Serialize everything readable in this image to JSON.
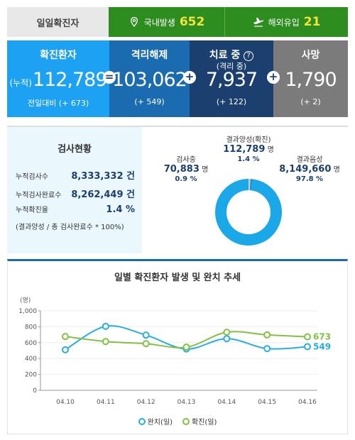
{
  "topbar": {
    "title": "일일확진자",
    "domestic_label": "국내발생",
    "domestic_value": "652",
    "import_label": "해외유입",
    "import_value": "21"
  },
  "status": {
    "confirmed": {
      "label": "확진환자",
      "prefix": "(누적)",
      "value": "112,789",
      "diff": "전일대비 (+ 673)"
    },
    "released": {
      "label": "격리해제",
      "value": "103,062",
      "diff": "(+ 549)"
    },
    "treating": {
      "label": "치료 중",
      "sub": "(격리 중)",
      "value": "7,937",
      "diff": "(+ 122)"
    },
    "deaths": {
      "label": "사망",
      "value": "1,790",
      "diff": "(+ 2)"
    },
    "op_equals": "=",
    "op_plus": "+"
  },
  "tests": {
    "title": "검사현황",
    "rows": [
      {
        "label": "누적검사수",
        "value": "8,333,332 건"
      },
      {
        "label": "누적검사완료수",
        "value": "8,262,449 건"
      },
      {
        "label": "누적확진율",
        "value": "1.4 %"
      }
    ],
    "note": "(결과양성 / 총 검사완료수 * 100%)",
    "donut": {
      "positive": {
        "label": "결과양성(확진)",
        "value": "112,789",
        "unit": "명",
        "pct": "1.4 %",
        "share": 1.4,
        "color": "#2196d3"
      },
      "testing": {
        "label": "검사중",
        "value": "70,883",
        "unit": "명",
        "pct": "0.9 %",
        "share": 0.9,
        "color": "#c8cfd6"
      },
      "negative": {
        "label": "결과음성",
        "value": "8,149,660",
        "unit": "명",
        "pct": "97.8 %",
        "share": 97.8,
        "color": "#1ba8e8"
      }
    }
  },
  "chart": {
    "title": "일별 확진환자 발생 및 완치 추세"
  },
  "chart_data": {
    "type": "line",
    "title": "일별 확진환자 발생 및 완치 추세",
    "ylabel": "(명)",
    "xlabel": "",
    "ylim": [
      0,
      1000
    ],
    "yticks": [
      "0",
      "200",
      "400",
      "600",
      "800",
      "1,000"
    ],
    "ytick_values": [
      0,
      200,
      400,
      600,
      800,
      1000
    ],
    "categories": [
      "04.10",
      "04.11",
      "04.12",
      "04.13",
      "04.14",
      "04.15",
      "04.16"
    ],
    "series": [
      {
        "name": "완치(일)",
        "color": "#27aee8",
        "values": [
          510,
          805,
          695,
          520,
          650,
          525,
          549
        ],
        "end_label": "549"
      },
      {
        "name": "확진(일)",
        "color": "#80c342",
        "values": [
          677,
          614,
          587,
          543,
          731,
          698,
          673
        ],
        "end_label": "673"
      }
    ],
    "grid": true,
    "legend": "bottom"
  }
}
